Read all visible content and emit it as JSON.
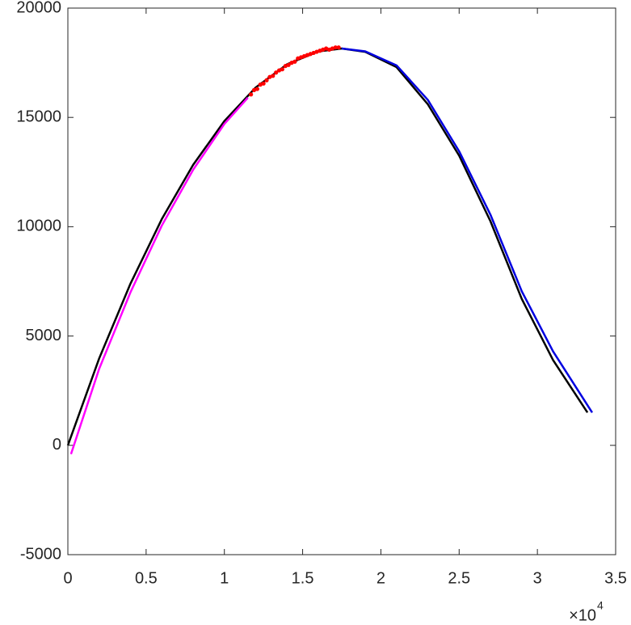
{
  "chart_data": {
    "type": "line",
    "xlim": [
      0,
      35000
    ],
    "xticks": [
      0,
      {
        "value": 5000,
        "label": "0.5"
      },
      {
        "value": 10000,
        "label": "1"
      },
      {
        "value": 15000,
        "label": "1.5"
      },
      {
        "value": 20000,
        "label": "2"
      },
      {
        "value": 25000,
        "label": "2.5"
      },
      {
        "value": 30000,
        "label": "3"
      },
      {
        "value": 35000,
        "label": "3.5"
      }
    ],
    "x_multiplier": "×10",
    "x_multiplier_exponent": "4",
    "ylim": [
      -5000,
      20000
    ],
    "yticks": [
      -5000,
      0,
      5000,
      10000,
      15000,
      20000
    ],
    "series": [
      {
        "color": "#000000",
        "style": "line",
        "x": [
          0,
          2000,
          4000,
          6000,
          8000,
          10000,
          12000,
          14000,
          16000,
          17500,
          19000,
          21000,
          23000,
          25000,
          27000,
          29000,
          31000,
          33200
        ],
        "values": [
          0,
          3975,
          7397,
          10347,
          12825,
          14831,
          16365,
          17427,
          18017,
          18150,
          18000,
          17300,
          15600,
          13250,
          10250,
          6700,
          3900,
          1500
        ]
      },
      {
        "color": "#0000e0",
        "style": "line",
        "x": [
          17500,
          19000,
          21000,
          23000,
          25000,
          27000,
          29000,
          31000,
          33500
        ],
        "values": [
          18150,
          18020,
          17380,
          15800,
          13450,
          10550,
          7050,
          4300,
          1500
        ]
      },
      {
        "color": "#ff00ff",
        "style": "line",
        "x": [
          200,
          2000,
          4000,
          6000,
          8000,
          10000,
          11500
        ],
        "values": [
          -400,
          3500,
          7000,
          10050,
          12600,
          14700,
          15900
        ]
      },
      {
        "color": "#ff0000",
        "style": "markers",
        "x": [
          11700,
          11900,
          12100,
          12300,
          12500,
          12700,
          12900,
          13100,
          13300,
          13500,
          13700,
          13900,
          14100,
          14300,
          14500,
          14700,
          14900,
          15100,
          15300,
          15500,
          15700,
          15900,
          16100,
          16300,
          16500,
          16700,
          16900,
          17100,
          17300
        ],
        "values": [
          16050,
          16250,
          16300,
          16500,
          16550,
          16700,
          16850,
          16900,
          17050,
          17150,
          17200,
          17350,
          17400,
          17500,
          17550,
          17700,
          17750,
          17800,
          17850,
          17900,
          17950,
          18000,
          18050,
          18100,
          18150,
          18100,
          18150,
          18200,
          18200
        ]
      }
    ]
  }
}
